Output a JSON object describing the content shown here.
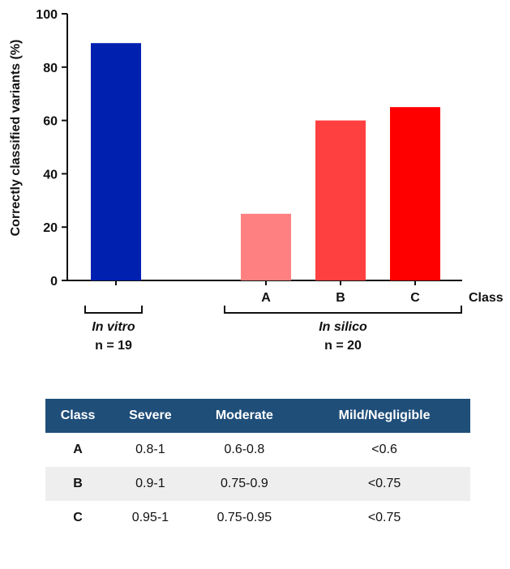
{
  "chart_data": {
    "type": "bar",
    "ylabel": "Correctly classified variants (%)",
    "xlabel": "Class",
    "ylim": [
      0,
      100
    ],
    "yticks": [
      0,
      20,
      40,
      60,
      80,
      100
    ],
    "grid": false,
    "categories": [
      "",
      "A",
      "B",
      "C"
    ],
    "values": [
      89,
      25,
      60,
      65
    ],
    "colors": [
      "#0020b0",
      "#ff8080",
      "#ff4040",
      "#ff0000"
    ],
    "groups": [
      {
        "label": "In vitro",
        "n": "n = 19",
        "members": [
          0
        ]
      },
      {
        "label": "In silico",
        "n": "n = 20",
        "members": [
          1,
          2,
          3
        ]
      }
    ]
  },
  "table": {
    "headers": [
      "Class",
      "Severe",
      "Moderate",
      "Mild/Negligible"
    ],
    "rows": [
      [
        "A",
        "0.8-1",
        "0.6-0.8",
        "<0.6"
      ],
      [
        "B",
        "0.9-1",
        "0.75-0.9",
        "<0.75"
      ],
      [
        "C",
        "0.95-1",
        "0.75-0.95",
        "<0.75"
      ]
    ],
    "header_color": "#1f4e79",
    "stripe_color": "#eeeeee"
  }
}
